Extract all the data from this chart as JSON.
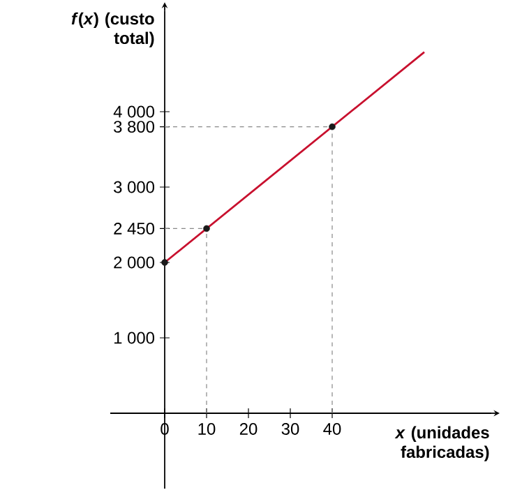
{
  "chart_data": {
    "type": "line",
    "xlabel": "*x* (unidades fabricadas)",
    "ylabel": "*f*(*x*) (custo total)",
    "xlim": [
      -13,
      78
    ],
    "ylim": [
      -1000,
      5340
    ],
    "xticks": [
      0,
      10,
      20,
      30,
      40
    ],
    "yticks": [
      {
        "value": 1000,
        "label": "1 000"
      },
      {
        "value": 2000,
        "label": "2 000"
      },
      {
        "value": 2450,
        "label": "2 450"
      },
      {
        "value": 3000,
        "label": "3 000"
      },
      {
        "value": 3800,
        "label": "3 800"
      },
      {
        "value": 4000,
        "label": "4 000"
      }
    ],
    "grid": false,
    "series": [
      {
        "type": "line",
        "color": "#c8102e",
        "x": [
          0,
          62
        ],
        "values": [
          2000,
          4790
        ]
      },
      {
        "type": "scatter",
        "color": "#1a1a1a",
        "x": [
          0,
          10,
          40
        ],
        "values": [
          2000,
          2450,
          3800
        ]
      }
    ],
    "ref_lines": [
      {
        "axis": "x",
        "value": 10,
        "color": "#888888",
        "line_style": "dashed"
      },
      {
        "axis": "x",
        "value": 40,
        "color": "#888888",
        "line_style": "dashed"
      },
      {
        "axis": "y",
        "value": 2450,
        "color": "#888888",
        "line_style": "dashed"
      },
      {
        "axis": "y",
        "value": 3800,
        "color": "#888888",
        "line_style": "dashed"
      }
    ]
  }
}
